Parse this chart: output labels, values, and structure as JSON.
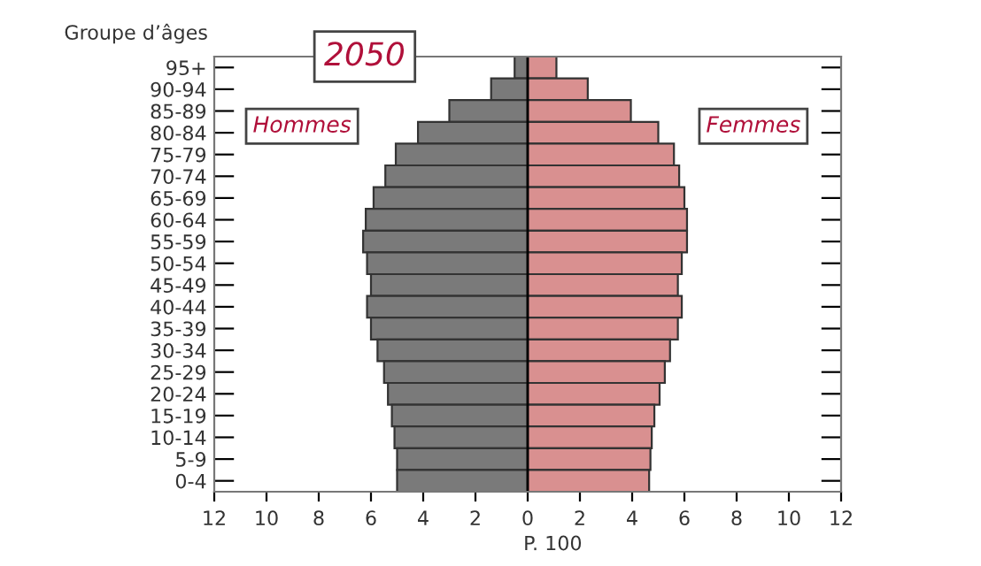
{
  "chart_data": {
    "type": "bar",
    "orientation": "horizontal",
    "stacked": true,
    "title": "2050",
    "ylabel": "Groupe d’âges",
    "xlabel": "P. 100",
    "categories": [
      "95+",
      "90-94",
      "85-89",
      "80-84",
      "75-79",
      "70-74",
      "65-69",
      "60-64",
      "55-59",
      "50-54",
      "45-49",
      "40-44",
      "35-39",
      "30-34",
      "25-29",
      "20-24",
      "15-19",
      "10-14",
      "5-9",
      "0-4"
    ],
    "series": [
      {
        "name": "Hommes",
        "color": "#7a7a7a",
        "values": [
          -0.5,
          -1.4,
          -3.0,
          -4.2,
          -5.05,
          -5.45,
          -5.9,
          -6.2,
          -6.3,
          -6.15,
          -6.0,
          -6.15,
          -6.0,
          -5.75,
          -5.5,
          -5.35,
          -5.2,
          -5.1,
          -5.0,
          -5.0
        ]
      },
      {
        "name": "Femmes",
        "color": "#d99090",
        "values": [
          1.1,
          2.3,
          3.95,
          5.0,
          5.6,
          5.8,
          6.0,
          6.1,
          6.1,
          5.9,
          5.75,
          5.9,
          5.75,
          5.45,
          5.25,
          5.05,
          4.85,
          4.75,
          4.7,
          4.65
        ]
      }
    ],
    "xlim": [
      -12,
      12
    ],
    "xticks": [
      {
        "value": -12,
        "label": "12"
      },
      {
        "value": -10,
        "label": "10"
      },
      {
        "value": -8,
        "label": "8"
      },
      {
        "value": -6,
        "label": "6"
      },
      {
        "value": -4,
        "label": "4"
      },
      {
        "value": -2,
        "label": "2"
      },
      0,
      2,
      4,
      6,
      8,
      10,
      12
    ],
    "ref_lines": [
      {
        "axis": "x",
        "value": 0,
        "color": "#000000"
      }
    ],
    "legend": false,
    "grid": false
  }
}
